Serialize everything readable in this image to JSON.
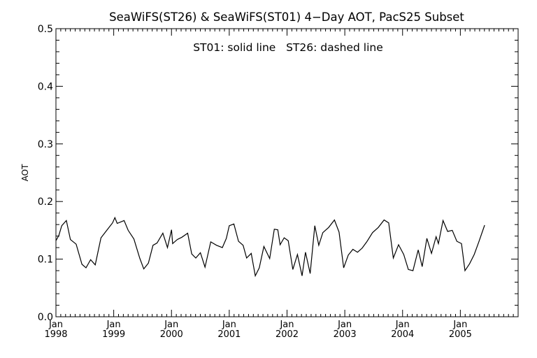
{
  "chart_data": {
    "type": "line",
    "title": "SeaWiFS(ST26) & SeaWiFS(ST01) 4−Day AOT, PacS25 Subset",
    "annotation": "ST01: solid line   ST26: dashed line",
    "ylabel": "AOT",
    "xlabel": "",
    "ylim": [
      0.0,
      0.5
    ],
    "yticks": [
      "0.0",
      "0.1",
      "0.2",
      "0.3",
      "0.4",
      "0.5"
    ],
    "xlim": [
      1998.0,
      2006.0
    ],
    "xticks": [
      {
        "month": "Jan",
        "year": "1998",
        "x": 1998.0
      },
      {
        "month": "Jan",
        "year": "1999",
        "x": 1999.0
      },
      {
        "month": "Jan",
        "year": "2000",
        "x": 2000.0
      },
      {
        "month": "Jan",
        "year": "2001",
        "x": 2001.0
      },
      {
        "month": "Jan",
        "year": "2002",
        "x": 2002.0
      },
      {
        "month": "Jan",
        "year": "2003",
        "x": 2003.0
      },
      {
        "month": "Jan",
        "year": "2004",
        "x": 2004.0
      },
      {
        "month": "Jan",
        "year": "2005",
        "x": 2005.0
      }
    ],
    "grid": false,
    "series": [
      {
        "name": "ST01",
        "style": "solid",
        "color": "#000000",
        "points": [
          [
            1998.0,
            0.132
          ],
          [
            1998.05,
            0.141
          ],
          [
            1998.1,
            0.158
          ],
          [
            1998.18,
            0.167
          ],
          [
            1998.25,
            0.134
          ],
          [
            1998.35,
            0.126
          ],
          [
            1998.45,
            0.091
          ],
          [
            1998.52,
            0.085
          ],
          [
            1998.6,
            0.099
          ],
          [
            1998.68,
            0.09
          ],
          [
            1998.78,
            0.137
          ],
          [
            1998.88,
            0.15
          ],
          [
            1998.98,
            0.163
          ],
          [
            1999.02,
            0.172
          ],
          [
            1999.06,
            0.162
          ],
          [
            1999.18,
            0.167
          ],
          [
            1999.25,
            0.15
          ],
          [
            1999.35,
            0.135
          ],
          [
            1999.45,
            0.102
          ],
          [
            1999.52,
            0.083
          ],
          [
            1999.6,
            0.093
          ],
          [
            1999.68,
            0.124
          ],
          [
            1999.75,
            0.128
          ],
          [
            1999.85,
            0.145
          ],
          [
            1999.93,
            0.12
          ],
          [
            2000.0,
            0.151
          ],
          [
            2000.02,
            0.127
          ],
          [
            2000.1,
            0.134
          ],
          [
            2000.18,
            0.138
          ],
          [
            2000.28,
            0.145
          ],
          [
            2000.35,
            0.109
          ],
          [
            2000.42,
            0.102
          ],
          [
            2000.5,
            0.111
          ],
          [
            2000.58,
            0.086
          ],
          [
            2000.68,
            0.13
          ],
          [
            2000.78,
            0.124
          ],
          [
            2000.88,
            0.12
          ],
          [
            2000.95,
            0.136
          ],
          [
            2001.0,
            0.158
          ],
          [
            2001.08,
            0.161
          ],
          [
            2001.16,
            0.131
          ],
          [
            2001.24,
            0.124
          ],
          [
            2001.3,
            0.102
          ],
          [
            2001.38,
            0.11
          ],
          [
            2001.45,
            0.071
          ],
          [
            2001.52,
            0.085
          ],
          [
            2001.6,
            0.122
          ],
          [
            2001.7,
            0.101
          ],
          [
            2001.78,
            0.152
          ],
          [
            2001.84,
            0.151
          ],
          [
            2001.88,
            0.125
          ],
          [
            2001.95,
            0.137
          ],
          [
            2002.02,
            0.132
          ],
          [
            2002.1,
            0.082
          ],
          [
            2002.18,
            0.108
          ],
          [
            2002.26,
            0.071
          ],
          [
            2002.32,
            0.112
          ],
          [
            2002.4,
            0.075
          ],
          [
            2002.48,
            0.158
          ],
          [
            2002.55,
            0.124
          ],
          [
            2002.62,
            0.146
          ],
          [
            2002.72,
            0.155
          ],
          [
            2002.82,
            0.168
          ],
          [
            2002.9,
            0.147
          ],
          [
            2002.98,
            0.085
          ],
          [
            2003.06,
            0.107
          ],
          [
            2003.14,
            0.117
          ],
          [
            2003.22,
            0.112
          ],
          [
            2003.3,
            0.119
          ],
          [
            2003.38,
            0.13
          ],
          [
            2003.48,
            0.146
          ],
          [
            2003.58,
            0.155
          ],
          [
            2003.68,
            0.168
          ],
          [
            2003.76,
            0.163
          ],
          [
            2003.84,
            0.102
          ],
          [
            2003.93,
            0.125
          ],
          [
            2004.02,
            0.108
          ],
          [
            2004.1,
            0.082
          ],
          [
            2004.18,
            0.08
          ],
          [
            2004.27,
            0.116
          ],
          [
            2004.34,
            0.087
          ],
          [
            2004.42,
            0.136
          ],
          [
            2004.5,
            0.11
          ],
          [
            2004.58,
            0.139
          ],
          [
            2004.62,
            0.127
          ],
          [
            2004.7,
            0.167
          ],
          [
            2004.78,
            0.148
          ],
          [
            2004.86,
            0.15
          ],
          [
            2004.94,
            0.131
          ],
          [
            2005.02,
            0.127
          ],
          [
            2005.08,
            0.08
          ],
          [
            2005.16,
            0.092
          ],
          [
            2005.24,
            0.108
          ],
          [
            2005.32,
            0.13
          ],
          [
            2005.42,
            0.159
          ]
        ]
      }
    ]
  }
}
